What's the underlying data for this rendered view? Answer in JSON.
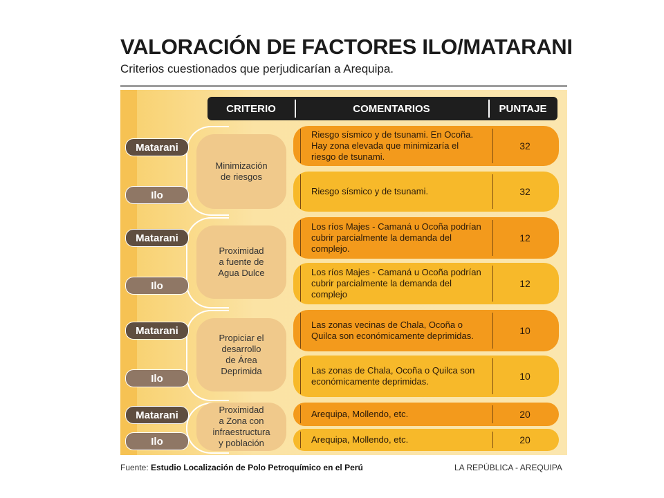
{
  "title": "VALORACIÓN DE FACTORES ILO/MATARANI",
  "subtitle": "Criterios cuestionados que perjudicarían a Arequipa.",
  "headers": {
    "criterio": "CRITERIO",
    "comentarios": "COMENTARIOS",
    "puntaje": "PUNTAJE"
  },
  "groups": [
    {
      "criterio": "Minimización\nde riesgos",
      "rows": [
        {
          "port": "Matarani",
          "comment": "Riesgo sísmico y de tsunami. En Ocoña. Hay zona elevada que minimizaría el riesgo de tsunami.",
          "score": "32"
        },
        {
          "port": "Ilo",
          "comment": "Riesgo sísmico y de tsunami.",
          "score": "32"
        }
      ]
    },
    {
      "criterio": "Proximidad\na fuente de\nAgua Dulce",
      "rows": [
        {
          "port": "Matarani",
          "comment": "Los ríos Majes - Camaná u Ocoña podrían cubrir parcialmente la demanda del complejo.",
          "score": "12"
        },
        {
          "port": "Ilo",
          "comment": "Los ríos Majes - Camaná u Ocoña podrían cubrir parcialmente la demanda del complejo",
          "score": "12"
        }
      ]
    },
    {
      "criterio": "Propiciar el\ndesarrollo\nde Área\nDeprimida",
      "rows": [
        {
          "port": "Matarani",
          "comment": "Las zonas vecinas de Chala, Ocoña o Quilca son económicamente deprimidas.",
          "score": "10"
        },
        {
          "port": "Ilo",
          "comment": "Las zonas de Chala, Ocoña o Quilca son económicamente deprimidas.",
          "score": "10"
        }
      ]
    },
    {
      "criterio": "Proximidad\na Zona con\ninfraestructura\ny población",
      "rows": [
        {
          "port": "Matarani",
          "comment": "Arequipa, Mollendo, etc.",
          "score": "20"
        },
        {
          "port": "Ilo",
          "comment": "Arequipa, Mollendo, etc.",
          "score": "20"
        }
      ]
    }
  ],
  "footer": {
    "source_label": "Fuente:",
    "source": "Estudio Localización de Polo Petroquímico en el Perú",
    "brand": "LA REPÚBLICA - AREQUIPA"
  }
}
